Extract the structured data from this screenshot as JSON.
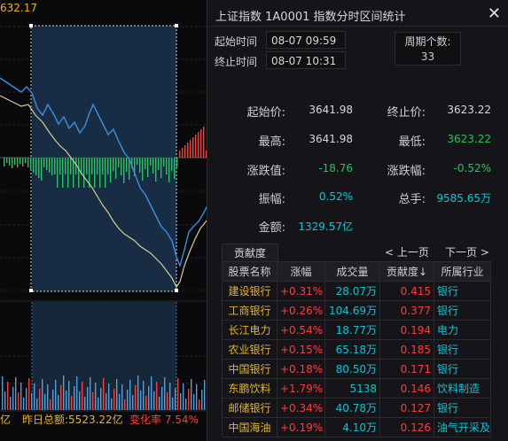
{
  "chart": {
    "top_price": "632.17",
    "total_amount_label": "昨日总额:5523.22亿",
    "change_rate_label": "变化率 7.54%",
    "left_unit_fragment": "亿"
  },
  "dialog": {
    "title": "上证指数   1A0001   指数分时区间统计",
    "start_label": "起始时间",
    "start_time": "08-07 09:59",
    "end_label": "终止时间",
    "end_time": "08-07 10:31",
    "period_label": "周期个数:",
    "period_count": "33"
  },
  "stats": {
    "start_price_label": "起始价:",
    "start_price": "3641.98",
    "end_price_label": "终止价:",
    "end_price": "3623.22",
    "high_label": "最高:",
    "high": "3641.98",
    "low_label": "最低:",
    "low": "3623.22",
    "change_label": "涨跌值:",
    "change": "-18.76",
    "change_pct_label": "涨跌幅:",
    "change_pct": "-0.52%",
    "amplitude_label": "振幅:",
    "amplitude": "0.52%",
    "volume_label": "总手:",
    "volume": "9585.65万",
    "amount_label": "金额:",
    "amount": "1329.57亿"
  },
  "contrib": {
    "tab_label": "贡献度",
    "prev_label": "< 上一页",
    "next_label": "下一页 >",
    "headers": [
      "股票名称",
      "涨幅",
      "成交量",
      "贡献度↓",
      "所属行业"
    ],
    "rows": [
      {
        "name": "建设银行",
        "chg": "+0.31%",
        "vol": "28.07万",
        "con": "0.415",
        "ind": "银行"
      },
      {
        "name": "工商银行",
        "chg": "+0.26%",
        "vol": "104.69万",
        "con": "0.377",
        "ind": "银行"
      },
      {
        "name": "长江电力",
        "chg": "+0.54%",
        "vol": "18.77万",
        "con": "0.194",
        "ind": "电力"
      },
      {
        "name": "农业银行",
        "chg": "+0.15%",
        "vol": "65.18万",
        "con": "0.185",
        "ind": "银行"
      },
      {
        "name": "中国银行",
        "chg": "+0.18%",
        "vol": "80.50万",
        "con": "0.171",
        "ind": "银行"
      },
      {
        "name": "东鹏饮料",
        "chg": "+1.79%",
        "vol": "5138",
        "con": "0.146",
        "ind": "饮料制造"
      },
      {
        "name": "邮储银行",
        "chg": "+0.34%",
        "vol": "40.78万",
        "con": "0.127",
        "ind": "银行"
      },
      {
        "name": "中国海油",
        "chg": "+0.19%",
        "vol": "4.10万",
        "con": "0.126",
        "ind": "油气开采及"
      }
    ]
  },
  "colors": {
    "up": "#ff3b3b",
    "down": "#22c55e",
    "price_line": "#3d8de0",
    "avg_line": "#d9c99a",
    "highlight": "#1d3a55"
  }
}
